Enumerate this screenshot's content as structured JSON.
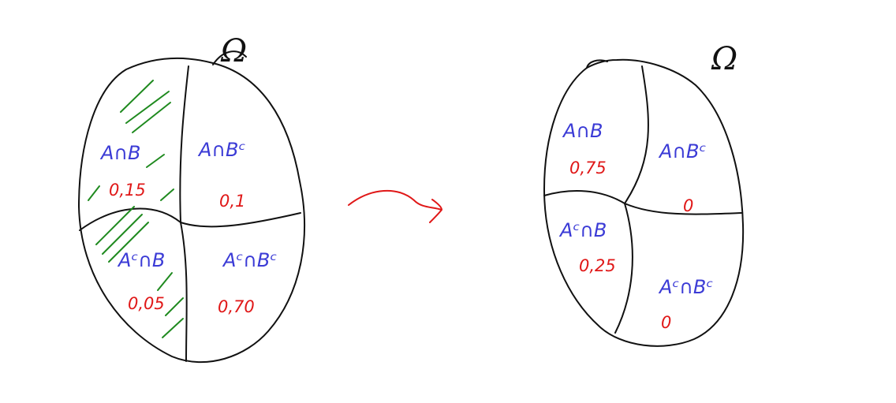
{
  "colors": {
    "ink": "#111111",
    "set_label": "#3b3bd6",
    "probability": "#e01818",
    "hatch": "#1f8a1f",
    "arrow": "#e01818"
  },
  "sample_space_symbol": "Ω",
  "before": {
    "regions": [
      {
        "set": "A∩B",
        "probability": "0,15",
        "hatched": true
      },
      {
        "set": "A∩Bᶜ",
        "probability": "0,1",
        "hatched": false
      },
      {
        "set": "Aᶜ∩B",
        "probability": "0,05",
        "hatched": true
      },
      {
        "set": "Aᶜ∩Bᶜ",
        "probability": "0,70",
        "hatched": false
      }
    ]
  },
  "after": {
    "regions": [
      {
        "set": "A∩B",
        "probability": "0,75"
      },
      {
        "set": "A∩Bᶜ",
        "probability": "0"
      },
      {
        "set": "Aᶜ∩B",
        "probability": "0,25"
      },
      {
        "set": "Aᶜ∩Bᶜ",
        "probability": "0"
      }
    ]
  }
}
